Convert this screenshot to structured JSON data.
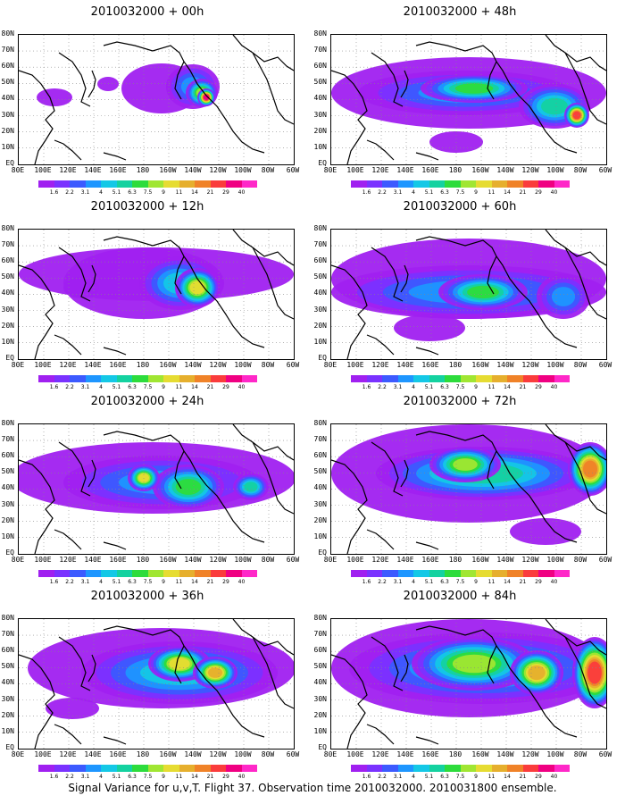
{
  "caption": "Signal Variance for u,v,T. Flight 37. Observation time 2010032000. 2010031800 ensemble.",
  "panels": [
    {
      "title": "2010032000 + 00h"
    },
    {
      "title": "2010032000 + 48h"
    },
    {
      "title": "2010032000 + 12h"
    },
    {
      "title": "2010032000 + 60h"
    },
    {
      "title": "2010032000 + 24h"
    },
    {
      "title": "2010032000 + 72h"
    },
    {
      "title": "2010032000 + 36h"
    },
    {
      "title": "2010032000 + 84h"
    }
  ],
  "lat_labels": [
    "80N",
    "70N",
    "60N",
    "50N",
    "40N",
    "30N",
    "20N",
    "10N",
    "EQ"
  ],
  "lon_labels": [
    "80E",
    "100E",
    "120E",
    "140E",
    "160E",
    "180",
    "160W",
    "140W",
    "120W",
    "100W",
    "80W",
    "60W"
  ],
  "colorbar": {
    "levels": [
      "1.6",
      "2.2",
      "3.1",
      "4",
      "5.1",
      "6.3",
      "7.5",
      "9",
      "11",
      "14",
      "21",
      "29",
      "40"
    ],
    "colors": [
      "#a020f0",
      "#7a32ff",
      "#3c5aff",
      "#1e96ff",
      "#14c8e6",
      "#14d2a0",
      "#2ddc3c",
      "#a0e632",
      "#e6dc32",
      "#e6af2d",
      "#f08228",
      "#fa3c3c",
      "#f00082",
      "#ff28c8"
    ]
  }
}
